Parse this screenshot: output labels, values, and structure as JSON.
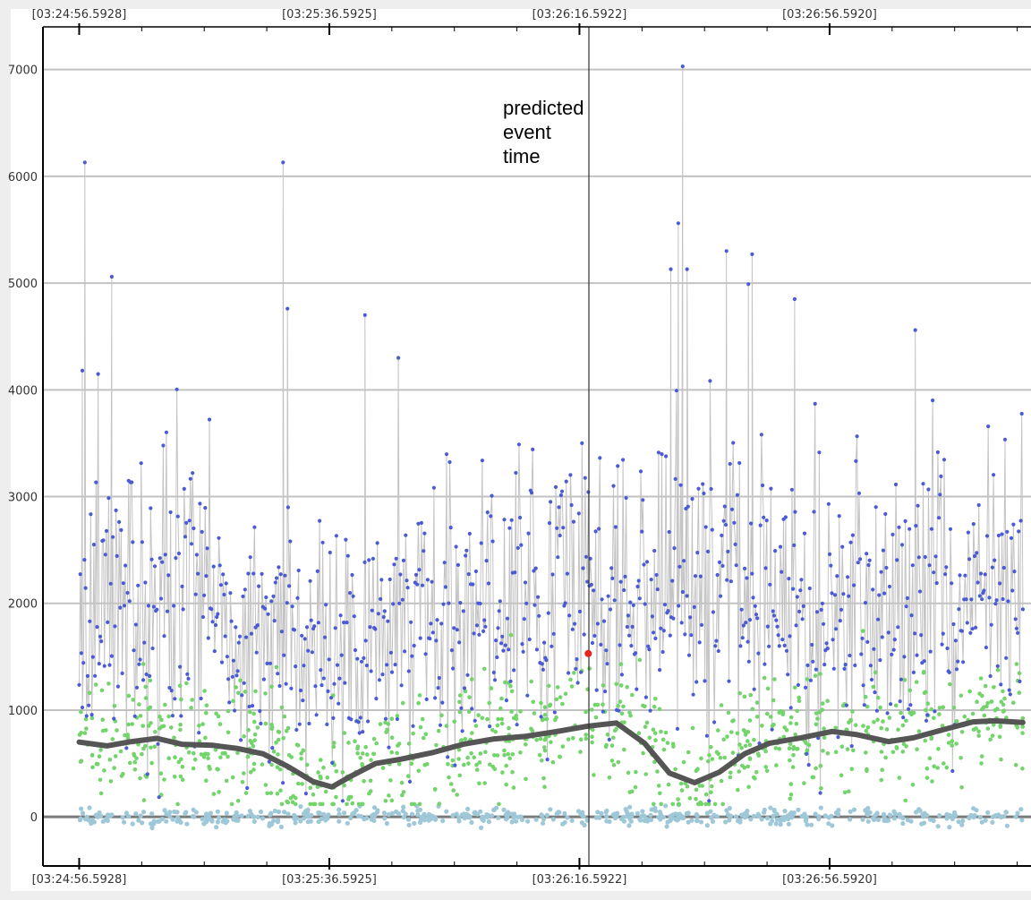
{
  "chart_data": {
    "type": "scatter",
    "title": "",
    "xlabel": "",
    "ylabel": "",
    "x_axis": {
      "type": "time",
      "range": [
        "03:24:50.8",
        "03:27:28.8"
      ],
      "tick_labels": [
        {
          "t": "03:24:56.5928",
          "label": "[03:24:56.5928]"
        },
        {
          "t": "03:25:36.5925",
          "label": "[03:25:36.5925]"
        },
        {
          "t": "03:26:16.5922",
          "label": "[03:26:16.5922]"
        },
        {
          "t": "03:26:56.5920",
          "label": "[03:26:56.5920]"
        }
      ]
    },
    "ylim": [
      -460,
      7400
    ],
    "y_ticks": [
      0,
      1000,
      2000,
      3000,
      4000,
      5000,
      6000,
      7000
    ],
    "grid": true,
    "legend": "none",
    "vertical_marker": {
      "t": "03:26:18.1",
      "label_lines": [
        "predicted",
        "event",
        "time"
      ]
    },
    "highlight_point": {
      "t": "03:26:18.0",
      "y": 1530,
      "color": "#e8231e"
    },
    "series": [
      {
        "kind": "connected-points",
        "color": "#4a5bd4",
        "line_color": "#c4c4c4",
        "description_values": "scattered high-frequency samples, baseline ~2000, spikes",
        "notable_peaks": [
          {
            "t": "03:24:57.5",
            "y": 6130
          },
          {
            "t": "03:24:57.1",
            "y": 4180
          },
          {
            "t": "03:25:01.8",
            "y": 5060
          },
          {
            "t": "03:25:29.2",
            "y": 6130
          },
          {
            "t": "03:25:29.9",
            "y": 4760
          },
          {
            "t": "03:25:42.3",
            "y": 4700
          },
          {
            "t": "03:26:33.1",
            "y": 7030
          },
          {
            "t": "03:26:32.4",
            "y": 5560
          },
          {
            "t": "03:26:31.2",
            "y": 5130
          },
          {
            "t": "03:26:33.8",
            "y": 5130
          },
          {
            "t": "03:26:40.1",
            "y": 5300
          },
          {
            "t": "03:26:43.6",
            "y": 4990
          },
          {
            "t": "03:26:44.2",
            "y": 5270
          },
          {
            "t": "03:26:51.0",
            "y": 4850
          },
          {
            "t": "03:27:10.3",
            "y": 4560
          }
        ]
      },
      {
        "kind": "points",
        "color": "#72d46a",
        "description_values": "lower band of samples ~200-1500"
      },
      {
        "kind": "points",
        "color": "#9ec8d8",
        "description_values": "near-zero band"
      },
      {
        "kind": "smoothed-line",
        "color": "#555555",
        "x": [
          "03:24:56.6",
          "03:25:01.0",
          "03:25:05.0",
          "03:25:09.0",
          "03:25:13.0",
          "03:25:18.0",
          "03:25:22.0",
          "03:25:26.0",
          "03:25:30.0",
          "03:25:34.0",
          "03:25:37.0",
          "03:25:40.0",
          "03:25:44.0",
          "03:25:48.0",
          "03:25:53.0",
          "03:25:58.0",
          "03:26:03.0",
          "03:26:08.0",
          "03:26:13.0",
          "03:26:18.0",
          "03:26:22.5",
          "03:26:27.0",
          "03:26:31.0",
          "03:26:35.0",
          "03:26:39.0",
          "03:26:43.0",
          "03:26:47.0",
          "03:26:52.0",
          "03:26:57.0",
          "03:27:01.0",
          "03:27:06.0",
          "03:27:10.0",
          "03:27:15.0",
          "03:27:19.5",
          "03:27:23.0",
          "03:27:27.5"
        ],
        "y": [
          700,
          665,
          705,
          735,
          680,
          670,
          640,
          590,
          470,
          330,
          280,
          380,
          500,
          540,
          600,
          680,
          730,
          755,
          800,
          850,
          880,
          690,
          410,
          320,
          420,
          590,
          690,
          740,
          800,
          770,
          705,
          740,
          820,
          890,
          900,
          885
        ]
      }
    ]
  }
}
